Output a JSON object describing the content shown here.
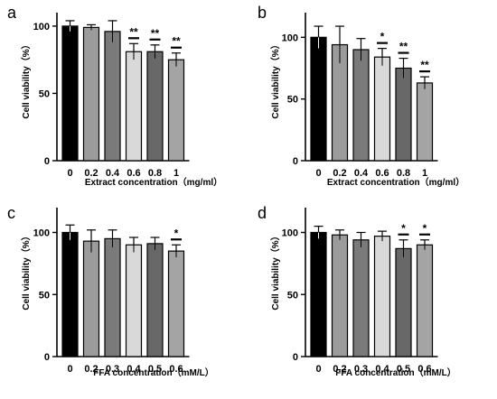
{
  "chart_data": [
    {
      "panel": "a",
      "type": "bar",
      "categories": [
        "0",
        "0.2",
        "0.4",
        "0.6",
        "0.8",
        "1"
      ],
      "values": [
        100,
        99,
        96,
        81,
        81,
        75
      ],
      "errors": [
        4,
        2,
        8,
        6,
        5,
        5
      ],
      "significance": [
        "",
        "",
        "",
        "**",
        "**",
        "**"
      ],
      "colors": [
        "#000000",
        "#9b9b9b",
        "#7a7a7a",
        "#d9d9d9",
        "#686868",
        "#a4a4a4"
      ],
      "xlabel": "Extract concentration（mg/ml）",
      "ylabel": "Cell viability（%）",
      "ylim": [
        0,
        110
      ],
      "yticks": [
        "0",
        "50",
        "100"
      ]
    },
    {
      "panel": "b",
      "type": "bar",
      "categories": [
        "0",
        "0.2",
        "0.4",
        "0.6",
        "0.8",
        "1"
      ],
      "values": [
        100,
        94,
        90,
        84,
        75,
        63
      ],
      "errors": [
        9,
        15,
        9,
        7,
        8,
        5
      ],
      "significance": [
        "",
        "",
        "",
        "*",
        "**",
        "**"
      ],
      "colors": [
        "#000000",
        "#9b9b9b",
        "#7a7a7a",
        "#d9d9d9",
        "#686868",
        "#a4a4a4"
      ],
      "xlabel": "Extract concentration（mg/ml）",
      "ylabel": "Cell viability（%）",
      "ylim": [
        0,
        120
      ],
      "yticks": [
        "0",
        "50",
        "100"
      ]
    },
    {
      "panel": "c",
      "type": "bar",
      "categories": [
        "0",
        "0.2",
        "0.3",
        "0.4",
        "0.5",
        "0.6"
      ],
      "values": [
        100,
        93,
        95,
        90,
        91,
        85
      ],
      "errors": [
        6,
        9,
        7,
        6,
        5,
        5
      ],
      "significance": [
        "",
        "",
        "",
        "",
        "",
        "*"
      ],
      "colors": [
        "#000000",
        "#9b9b9b",
        "#7a7a7a",
        "#d9d9d9",
        "#686868",
        "#a4a4a4"
      ],
      "xlabel": "FFA concentration（mM/L）",
      "ylabel": "Cell viability（%）",
      "ylim": [
        0,
        120
      ],
      "yticks": [
        "0",
        "50",
        "100"
      ]
    },
    {
      "panel": "d",
      "type": "bar",
      "categories": [
        "0",
        "0.2",
        "0.3",
        "0.4",
        "0.5",
        "0.6"
      ],
      "values": [
        100,
        98,
        94,
        97,
        87,
        90
      ],
      "errors": [
        5,
        4,
        6,
        4,
        7,
        4
      ],
      "significance": [
        "",
        "",
        "",
        "",
        "*",
        "*"
      ],
      "colors": [
        "#000000",
        "#9b9b9b",
        "#7a7a7a",
        "#d9d9d9",
        "#686868",
        "#a4a4a4"
      ],
      "xlabel": "FFA concentration（mM/L）",
      "ylabel": "Cell viability（%）",
      "ylim": [
        0,
        120
      ],
      "yticks": [
        "0",
        "50",
        "100"
      ]
    }
  ]
}
